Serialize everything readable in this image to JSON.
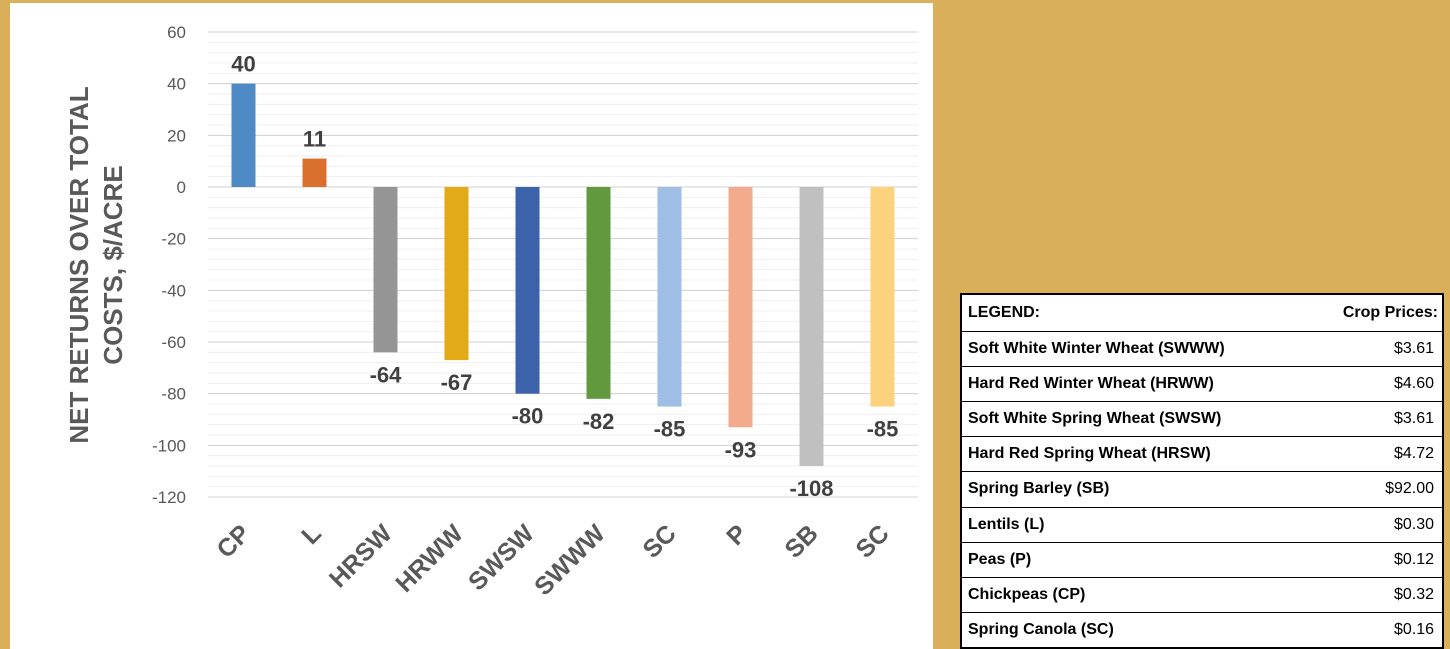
{
  "chart_data": {
    "type": "bar",
    "categories": [
      "CP",
      "L",
      "HRSW",
      "HRWW",
      "SWSW",
      "SWWW",
      "SC",
      "P",
      "SB",
      "SC"
    ],
    "values": [
      40,
      11,
      -64,
      -67,
      -80,
      -82,
      -85,
      -93,
      -108,
      -85
    ],
    "bar_colors": [
      "#4E8AC4",
      "#D9702D",
      "#959595",
      "#E2AA16",
      "#3C62AC",
      "#62993F",
      "#9EBEE5",
      "#F2AB8C",
      "#C0C0C0",
      "#FDD27F"
    ],
    "ylabel": "NET RETURNS OVER TOTAL COSTS, $/ACRE",
    "ylim": [
      -120,
      60
    ],
    "yticks": [
      60,
      40,
      20,
      0,
      -20,
      -40,
      -60,
      -80,
      -100,
      -120
    ],
    "grid": true,
    "data_labels": true
  },
  "legend": {
    "header_label": "LEGEND:",
    "header_price": "Crop Prices:",
    "rows": [
      {
        "name": "Soft White Winter Wheat (SWWW)",
        "price": "$3.61"
      },
      {
        "name": "Hard Red Winter Wheat (HRWW)",
        "price": "$4.60"
      },
      {
        "name": "Soft White Spring Wheat (SWSW)",
        "price": "$3.61"
      },
      {
        "name": "Hard Red Spring Wheat (HRSW)",
        "price": "$4.72"
      },
      {
        "name": "Spring Barley (SB)",
        "price": "$92.00"
      },
      {
        "name": "Lentils (L)",
        "price": "$0.30"
      },
      {
        "name": "Peas (P)",
        "price": "$0.12"
      },
      {
        "name": "Chickpeas (CP)",
        "price": "$0.32"
      },
      {
        "name": "Spring Canola (SC)",
        "price": "$0.16"
      }
    ]
  }
}
